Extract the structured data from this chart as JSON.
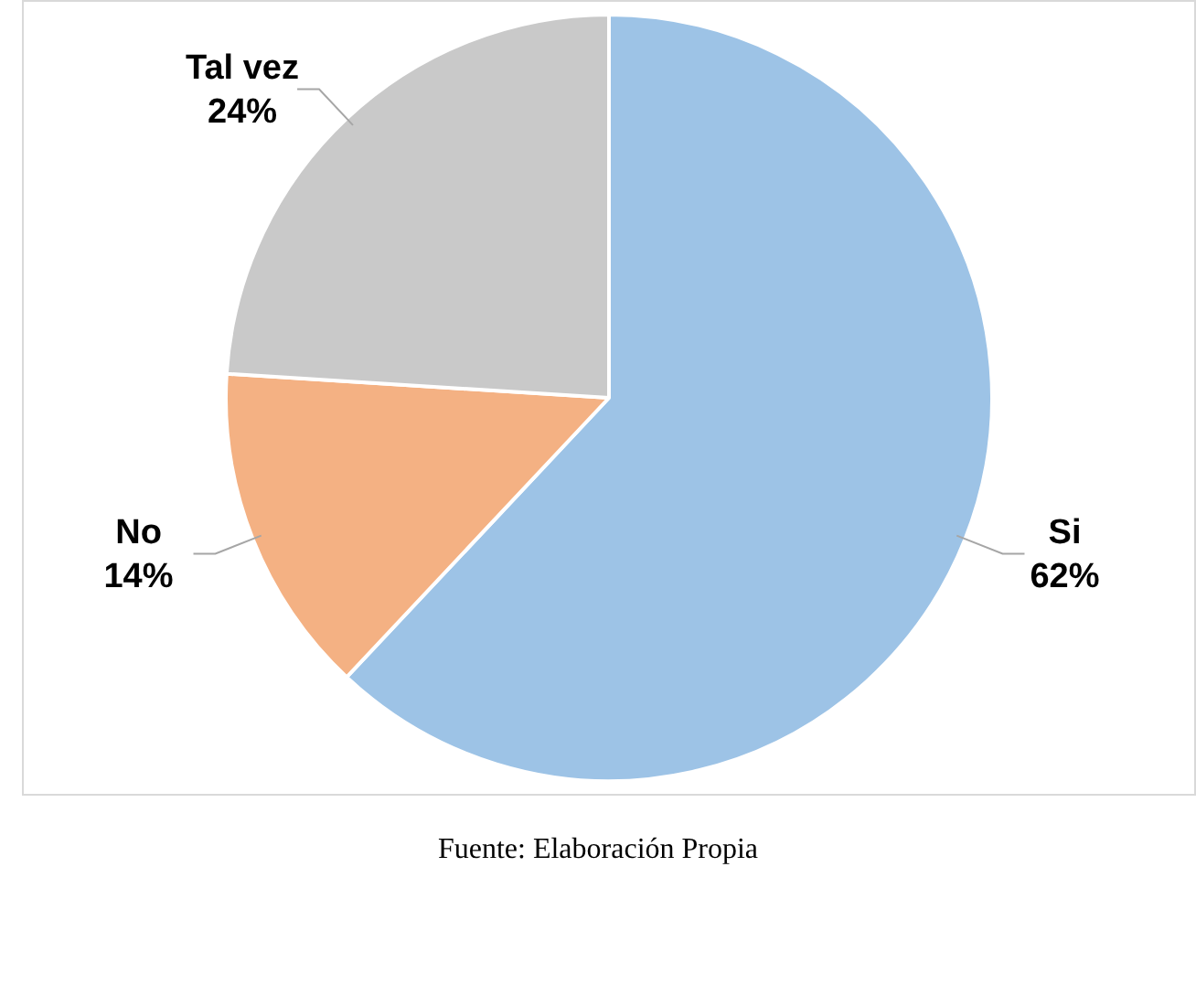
{
  "chart_data": {
    "type": "pie",
    "categories": [
      "Si",
      "No",
      "Tal vez"
    ],
    "values": [
      62,
      14,
      24
    ],
    "colors": [
      "#9dc3e6",
      "#f4b183",
      "#c9c9c9"
    ],
    "value_labels": [
      "62%",
      "14%",
      "24%"
    ],
    "legend": false,
    "annotations": [
      "Fuente: Elaboración Propia"
    ]
  }
}
